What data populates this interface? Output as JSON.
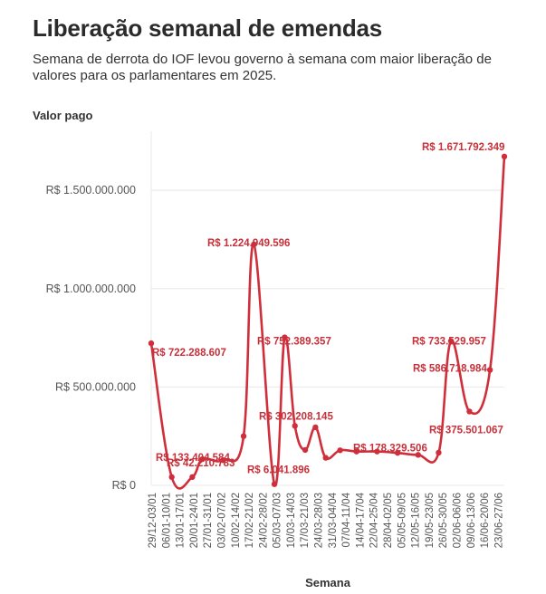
{
  "header": {
    "title": "Liberação semanal de emendas",
    "subtitle": "Semana de derrota do IOF levou governo à semana com maior liberação de valores para os parlamentares em 2025."
  },
  "colors": {
    "line": "#cf2f3b",
    "label": "#c8303a",
    "grid": "#e8e8e8"
  },
  "chart_data": {
    "type": "line",
    "ylabel": "Valor pago",
    "xlabel": "Semana",
    "ylim": [
      0,
      1800000000
    ],
    "yticks": [
      0,
      500000000,
      1000000000,
      1500000000
    ],
    "ytick_labels": [
      "R$ 0",
      "R$ 500.000.000",
      "R$ 1.000.000.000",
      "R$ 1.500.000.000"
    ],
    "grid": true,
    "x_tick_labels": [
      "29/12-03/01",
      "06/01-10/01",
      "13/01-17/01",
      "20/01-24/01",
      "27/01-31/01",
      "03/02-07/02",
      "10/02-14/02",
      "17/02-21/02",
      "24/02-28/02",
      "05/03-07/03",
      "10/03-14/03",
      "17/03-21/03",
      "24/03-28/03",
      "31/03-04/04",
      "07/04-11/04",
      "14/04-17/04",
      "22/04-25/04",
      "28/04-02/05",
      "05/05-09/05",
      "12/05-16/05",
      "19/05-23/05",
      "26/05-30/05",
      "02/06-06/06",
      "09/06-13/06",
      "16/06-20/06",
      "23/06-27/06"
    ],
    "points": [
      {
        "x": 0.0,
        "y": 722288607
      },
      {
        "x": 1.0,
        "y": 42210783
      },
      {
        "x": 2.0,
        "y": 42210783
      },
      {
        "x": 2.5,
        "y": 133404584
      },
      {
        "x": 3.5,
        "y": 128000000
      },
      {
        "x": 4.5,
        "y": 250000000
      },
      {
        "x": 5.0,
        "y": 1224949596
      },
      {
        "x": 6.0,
        "y": 6041896
      },
      {
        "x": 6.5,
        "y": 752389357
      },
      {
        "x": 7.0,
        "y": 302208145
      },
      {
        "x": 7.5,
        "y": 180000000
      },
      {
        "x": 8.0,
        "y": 295000000
      },
      {
        "x": 8.5,
        "y": 140000000
      },
      {
        "x": 9.2,
        "y": 178329506
      },
      {
        "x": 10.0,
        "y": 172000000
      },
      {
        "x": 11.0,
        "y": 172000000
      },
      {
        "x": 12.0,
        "y": 165000000
      },
      {
        "x": 13.0,
        "y": 155000000
      },
      {
        "x": 14.0,
        "y": 166000000
      },
      {
        "x": 14.6,
        "y": 733529957
      },
      {
        "x": 15.5,
        "y": 375501067
      },
      {
        "x": 16.5,
        "y": 586718984
      },
      {
        "x": 17.2,
        "y": 1671792349
      }
    ],
    "data_labels": [
      {
        "text": "R$ 722.288.607",
        "value": 722288607
      },
      {
        "text": "R$ 133.404.584",
        "value": 133404584
      },
      {
        "text": "R$ 42.210.783",
        "value": 42210783
      },
      {
        "text": "R$ 1.224.949.596",
        "value": 1224949596
      },
      {
        "text": "R$ 6.041.896",
        "value": 6041896
      },
      {
        "text": "R$ 752.389.357",
        "value": 752389357
      },
      {
        "text": "R$ 302.208.145",
        "value": 302208145
      },
      {
        "text": "R$ 178.329.506",
        "value": 178329506
      },
      {
        "text": "R$ 733.529.957",
        "value": 733529957
      },
      {
        "text": "R$ 586.718.984",
        "value": 586718984
      },
      {
        "text": "R$ 375.501.067",
        "value": 375501067
      },
      {
        "text": "R$ 1.671.792.349",
        "value": 1671792349
      }
    ]
  }
}
